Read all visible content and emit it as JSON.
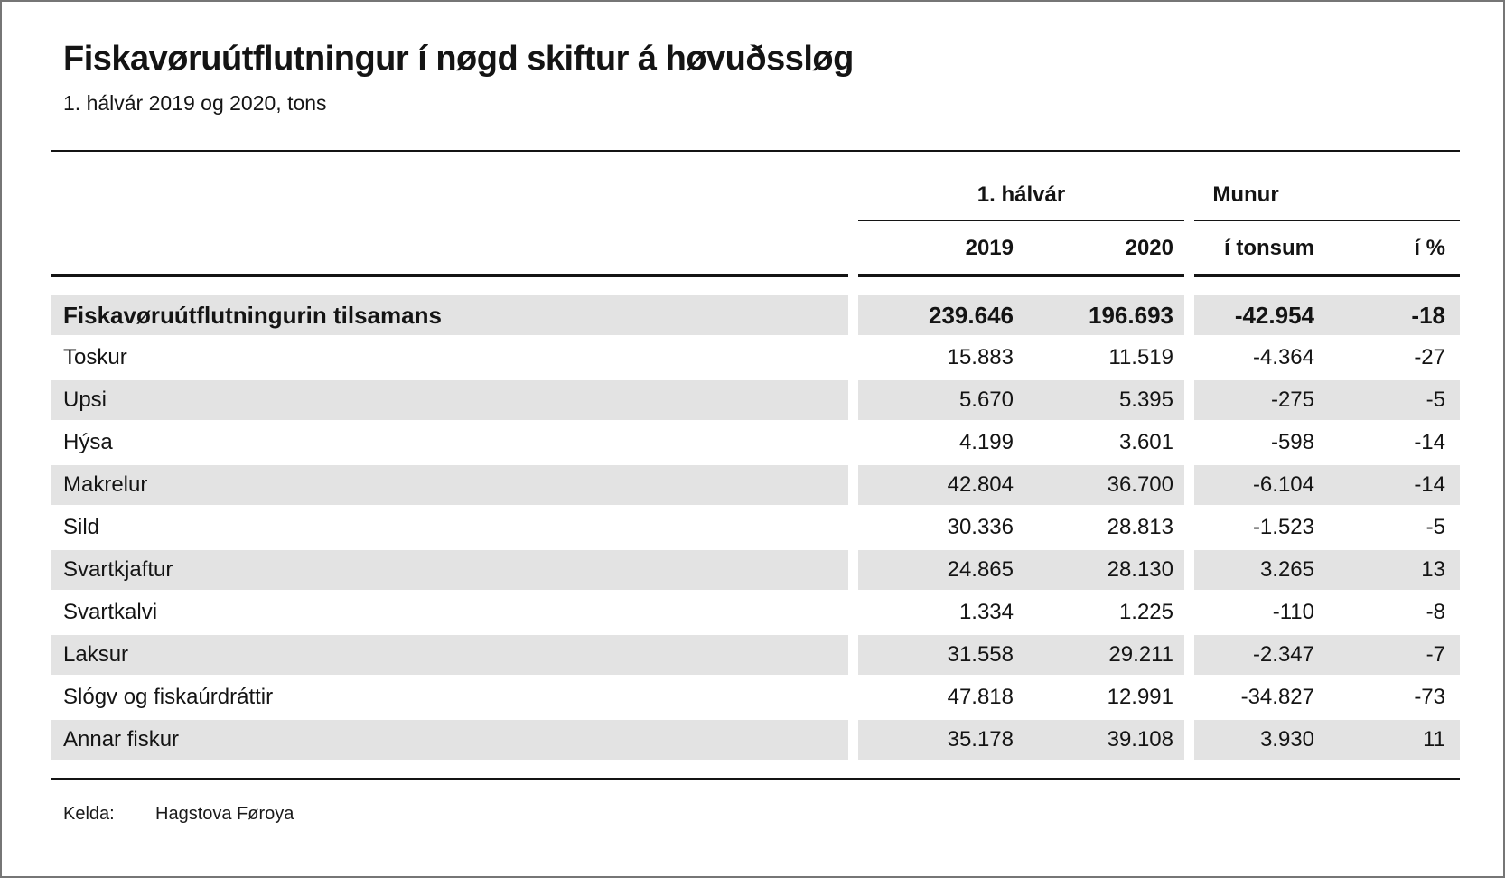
{
  "title": "Fiskavøruútflutningur í nøgd skiftur á høvuðssløg",
  "subtitle": "1. hálvár 2019 og 2020, tons",
  "table": {
    "group_headers": {
      "period": "1. hálvár",
      "difference": "Munur"
    },
    "column_headers": {
      "y2019": "2019",
      "y2020": "2020",
      "tons": "í tonsum",
      "pct": "í %"
    },
    "rows": [
      {
        "label": "Fiskavøruútflutningurin tilsamans",
        "y2019": "239.646",
        "y2020": "196.693",
        "tons": "-42.954",
        "pct": "-18"
      },
      {
        "label": "Toskur",
        "y2019": "15.883",
        "y2020": "11.519",
        "tons": "-4.364",
        "pct": "-27"
      },
      {
        "label": "Upsi",
        "y2019": "5.670",
        "y2020": "5.395",
        "tons": "-275",
        "pct": "-5"
      },
      {
        "label": "Hýsa",
        "y2019": "4.199",
        "y2020": "3.601",
        "tons": "-598",
        "pct": "-14"
      },
      {
        "label": "Makrelur",
        "y2019": "42.804",
        "y2020": "36.700",
        "tons": "-6.104",
        "pct": "-14"
      },
      {
        "label": "Sild",
        "y2019": "30.336",
        "y2020": "28.813",
        "tons": "-1.523",
        "pct": "-5"
      },
      {
        "label": "Svartkjaftur",
        "y2019": "24.865",
        "y2020": "28.130",
        "tons": "3.265",
        "pct": "13"
      },
      {
        "label": "Svartkalvi",
        "y2019": "1.334",
        "y2020": "1.225",
        "tons": "-110",
        "pct": "-8"
      },
      {
        "label": "Laksur",
        "y2019": "31.558",
        "y2020": "29.211",
        "tons": "-2.347",
        "pct": "-7"
      },
      {
        "label": "Slógv og fiskaúrdráttir",
        "y2019": "47.818",
        "y2020": "12.991",
        "tons": "-34.827",
        "pct": "-73"
      },
      {
        "label": "Annar fiskur",
        "y2019": "35.178",
        "y2020": "39.108",
        "tons": "3.930",
        "pct": "11"
      }
    ]
  },
  "footer": {
    "source_label": "Kelda:",
    "source_value": "Hagstova Føroya"
  },
  "colors": {
    "stripe": "#e3e3e3",
    "text": "#141414",
    "rule": "#141414",
    "page_border": "#767676"
  },
  "chart_data": {
    "type": "table",
    "title": "Fiskavøruútflutningur í nøgd skiftur á høvuðssløg",
    "subtitle": "1. hálvár 2019 og 2020, tons",
    "column_groups": [
      "1. hálvár",
      "Munur"
    ],
    "columns": [
      "2019",
      "2020",
      "í tonsum",
      "í %"
    ],
    "rows": [
      {
        "label": "Fiskavøruútflutningurin tilsamans",
        "halvar_2019": 239646,
        "halvar_2020": 196693,
        "munur_tons": -42954,
        "munur_pct": -18
      },
      {
        "label": "Toskur",
        "halvar_2019": 15883,
        "halvar_2020": 11519,
        "munur_tons": -4364,
        "munur_pct": -27
      },
      {
        "label": "Upsi",
        "halvar_2019": 5670,
        "halvar_2020": 5395,
        "munur_tons": -275,
        "munur_pct": -5
      },
      {
        "label": "Hýsa",
        "halvar_2019": 4199,
        "halvar_2020": 3601,
        "munur_tons": -598,
        "munur_pct": -14
      },
      {
        "label": "Makrelur",
        "halvar_2019": 42804,
        "halvar_2020": 36700,
        "munur_tons": -6104,
        "munur_pct": -14
      },
      {
        "label": "Sild",
        "halvar_2019": 30336,
        "halvar_2020": 28813,
        "munur_tons": -1523,
        "munur_pct": -5
      },
      {
        "label": "Svartkjaftur",
        "halvar_2019": 24865,
        "halvar_2020": 28130,
        "munur_tons": 3265,
        "munur_pct": 13
      },
      {
        "label": "Svartkalvi",
        "halvar_2019": 1334,
        "halvar_2020": 1225,
        "munur_tons": -110,
        "munur_pct": -8
      },
      {
        "label": "Laksur",
        "halvar_2019": 31558,
        "halvar_2020": 29211,
        "munur_tons": -2347,
        "munur_pct": -7
      },
      {
        "label": "Slógv og fiskaúrdráttir",
        "halvar_2019": 47818,
        "halvar_2020": 12991,
        "munur_tons": -34827,
        "munur_pct": -73
      },
      {
        "label": "Annar fiskur",
        "halvar_2019": 35178,
        "halvar_2020": 39108,
        "munur_tons": 3930,
        "munur_pct": 11
      }
    ],
    "source": "Hagstova Føroya"
  }
}
